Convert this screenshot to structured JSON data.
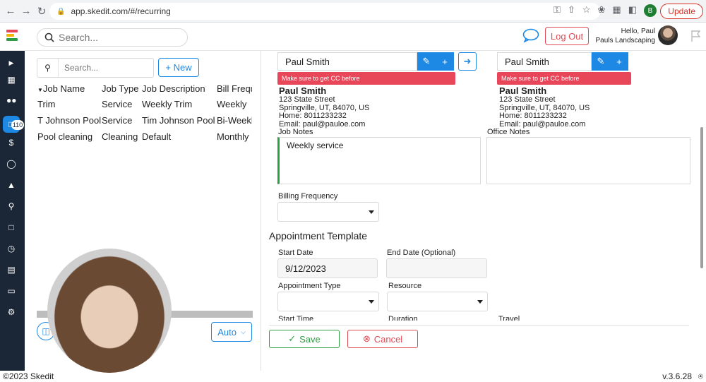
{
  "browser": {
    "url": "app.skedit.com/#/recurring",
    "profile_initial": "B",
    "update_label": "Update"
  },
  "header": {
    "search_placeholder": "Search...",
    "logout_label": "Log Out",
    "greeting": "Hello, Paul",
    "company": "Pauls Landscaping"
  },
  "sidebar": {
    "badge": "110"
  },
  "left_panel": {
    "search_placeholder": "Search...",
    "new_label": "+ New",
    "columns": [
      "Job Name",
      "Job Type",
      "Job Description",
      "Bill Frequ"
    ],
    "rows": [
      [
        "Trim",
        "Service",
        "Weekly Trim",
        "Weekly"
      ],
      [
        "T Johnson Pool",
        "Service",
        "Tim Johnson Pool",
        "Bi-Weekl"
      ],
      [
        "Pool cleaning",
        "Cleaning",
        "Default",
        "Monthly"
      ]
    ],
    "auto_label": "Auto"
  },
  "form": {
    "billing_customer": "Paul Smith",
    "service_customer": "Paul Smith",
    "warning_text": "Make sure to get CC before",
    "customer_left": {
      "name": "Paul Smith",
      "street": "123 State Street",
      "city": "Springville, UT, 84070, US",
      "home": "Home: 8011233232",
      "email": "Email: paul@pauloe.com"
    },
    "customer_right": {
      "name": "Paul Smith",
      "street": "123 State Street",
      "city": "Springville, UT, 84070, US",
      "home": "Home: 8011233232",
      "email": "Email: paul@pauloe.com"
    },
    "job_notes_label": "Job Notes",
    "job_notes_value": "Weekly service",
    "office_notes_label": "Office Notes",
    "billing_frequency_label": "Billing Frequency",
    "appointment_template_title": "Appointment Template",
    "start_date_label": "Start Date",
    "start_date_value": "9/12/2023",
    "end_date_label": "End Date (Optional)",
    "appointment_type_label": "Appointment Type",
    "resource_label": "Resource",
    "start_time_label": "Start Time",
    "duration_label": "Duration",
    "travel_label": "Travel",
    "save_label": "Save",
    "cancel_label": "Cancel"
  },
  "footer": {
    "copyright": "©2023 Skedit",
    "version": "v.3.6.28"
  },
  "colors": {
    "accent": "#1e88e5",
    "sidebar": "#1b2636",
    "danger": "#e8475a",
    "success": "#2e9e44"
  }
}
